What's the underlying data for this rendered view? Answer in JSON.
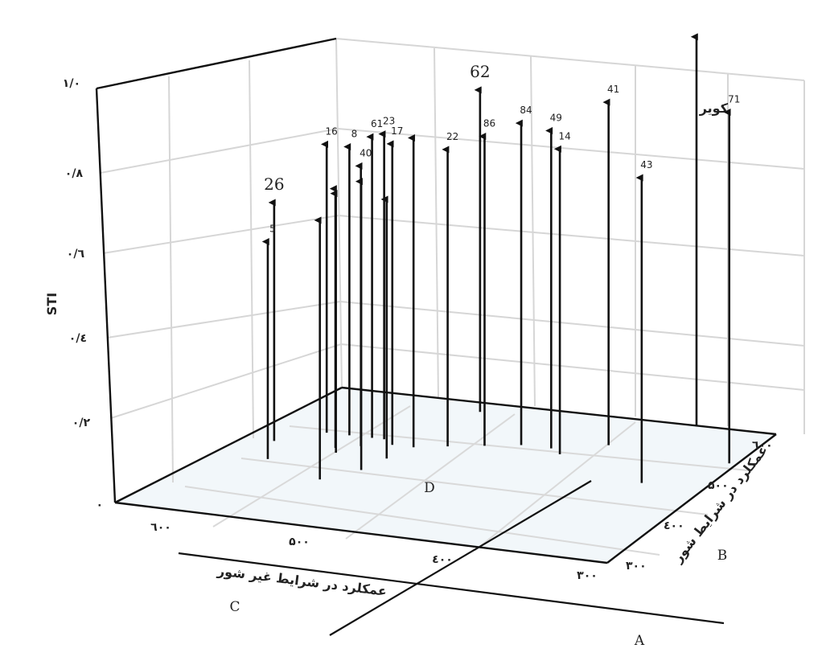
{
  "chart_data": {
    "type": "scatter",
    "variant": "3d-stem",
    "title": "کویر",
    "zlabel": "STI",
    "xlabel": "عمکلرد در شرایط غیر شور",
    "ylabel": "عمکلرد در شرایط شور",
    "z_ticks": [
      "۰",
      "۰/۲",
      "۰/٤",
      "۰/٦",
      "۰/۸",
      "۱/۰"
    ],
    "x_ticks": [
      "٦۰۰",
      "۵۰۰",
      "٤۰۰",
      "۳۰۰"
    ],
    "y_ticks": [
      "۳۰۰",
      "٤۰۰",
      "۵۰۰",
      "٦۰۰"
    ],
    "zlim": [
      0,
      1.0
    ],
    "grid": true,
    "quadrant_labels": [
      "A",
      "B",
      "C",
      "D"
    ],
    "points": [
      {
        "label": "26",
        "x": 580,
        "y": 470,
        "z": 0.57
      },
      {
        "label": "5",
        "x": 565,
        "y": 430,
        "z": 0.52
      },
      {
        "label": "16",
        "x": 560,
        "y": 500,
        "z": 0.69
      },
      {
        "label": "8",
        "x": 545,
        "y": 500,
        "z": 0.69
      },
      {
        "label": "",
        "x": 540,
        "y": 470,
        "z": 0.62
      },
      {
        "label": "",
        "x": 535,
        "y": 460,
        "z": 0.62
      },
      {
        "label": "61",
        "x": 530,
        "y": 500,
        "z": 0.72
      },
      {
        "label": "40",
        "x": 528,
        "y": 480,
        "z": 0.67
      },
      {
        "label": "23",
        "x": 522,
        "y": 500,
        "z": 0.73
      },
      {
        "label": "",
        "x": 518,
        "y": 400,
        "z": 0.62
      },
      {
        "label": "17",
        "x": 512,
        "y": 490,
        "z": 0.72
      },
      {
        "label": "",
        "x": 505,
        "y": 430,
        "z": 0.69
      },
      {
        "label": "",
        "x": 502,
        "y": 460,
        "z": 0.62
      },
      {
        "label": "",
        "x": 498,
        "y": 490,
        "z": 0.74
      },
      {
        "label": "62",
        "x": 495,
        "y": 580,
        "z": 0.77
      },
      {
        "label": "22",
        "x": 480,
        "y": 500,
        "z": 0.71
      },
      {
        "label": "86",
        "x": 460,
        "y": 510,
        "z": 0.74
      },
      {
        "label": "84",
        "x": 440,
        "y": 520,
        "z": 0.77
      },
      {
        "label": "49",
        "x": 420,
        "y": 520,
        "z": 0.76
      },
      {
        "label": "14",
        "x": 410,
        "y": 510,
        "z": 0.73
      },
      {
        "label": "41",
        "x": 390,
        "y": 540,
        "z": 0.82
      },
      {
        "label": "",
        "x": 355,
        "y": 600,
        "z": 0.93
      },
      {
        "label": "43",
        "x": 340,
        "y": 470,
        "z": 0.73
      },
      {
        "label": "71",
        "x": 305,
        "y": 530,
        "z": 0.84
      }
    ]
  }
}
